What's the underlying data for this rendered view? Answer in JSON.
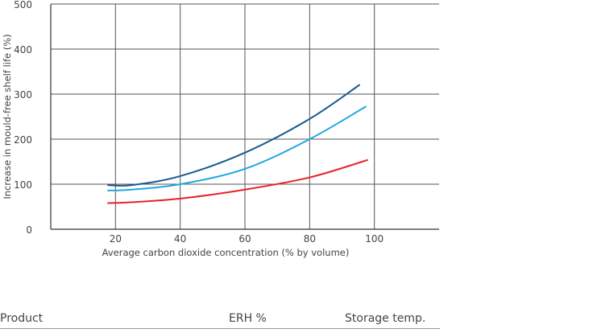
{
  "chart_data": {
    "type": "line",
    "title": "",
    "xlabel": "Average carbon dioxide concentration (% by volume)",
    "ylabel": "Increase in mould-free shelf life (%)",
    "xlim": [
      0,
      120
    ],
    "ylim": [
      0,
      500
    ],
    "xticks": [
      20,
      40,
      60,
      80,
      100
    ],
    "yticks": [
      0,
      100,
      200,
      300,
      400,
      500
    ],
    "grid": true,
    "series": [
      {
        "color": "#1a5a8e",
        "x": [
          17.5,
          25,
          40,
          60,
          80,
          95.5
        ],
        "y": [
          98,
          98,
          118,
          170,
          245,
          321
        ]
      },
      {
        "color": "#1fa8e0",
        "x": [
          17.5,
          25,
          40,
          60,
          80,
          97.5
        ],
        "y": [
          86,
          88,
          100,
          134,
          200,
          273
        ]
      },
      {
        "color": "#e8222c",
        "x": [
          17.5,
          25,
          40,
          60,
          80,
          98
        ],
        "y": [
          58,
          60,
          68,
          88,
          115,
          154
        ]
      }
    ]
  },
  "table": {
    "headers": [
      "Product",
      "ERH %",
      "Storage temp."
    ]
  }
}
